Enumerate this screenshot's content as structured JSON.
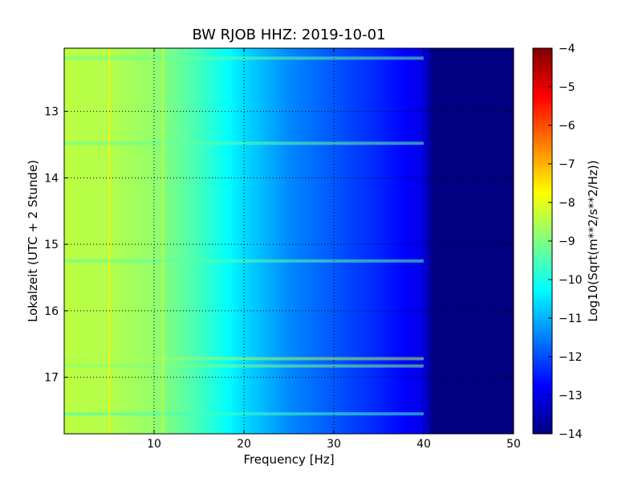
{
  "chart_data": {
    "type": "heatmap",
    "title": "BW RJOB HHZ: 2019-10-01",
    "xlabel": "Frequency [Hz]",
    "ylabel": "Lokalzeit (UTC + 2 Stunde)",
    "xlim": [
      0,
      50
    ],
    "ylim": [
      17.85,
      12.05
    ],
    "y_axis_inverted": true,
    "x_ticks": [
      10,
      20,
      30,
      40,
      50
    ],
    "y_ticks": [
      13,
      14,
      15,
      16,
      17
    ],
    "grid": true,
    "colormap": "jet",
    "colorbar": {
      "label": "Log10(Sqrt(m**2/s**2/Hz))",
      "range": [
        -14,
        -4
      ],
      "ticks": [
        -4,
        -5,
        -6,
        -7,
        -8,
        -9,
        -10,
        -11,
        -12,
        -13,
        -14
      ]
    },
    "spectral_profile": [
      {
        "freq": 0,
        "value": -8.4
      },
      {
        "freq": 5,
        "value": -8.5
      },
      {
        "freq": 10,
        "value": -8.8
      },
      {
        "freq": 15,
        "value": -9.6
      },
      {
        "freq": 20,
        "value": -10.6
      },
      {
        "freq": 25,
        "value": -11.4
      },
      {
        "freq": 30,
        "value": -11.9
      },
      {
        "freq": 35,
        "value": -12.4
      },
      {
        "freq": 40,
        "value": -13.0
      },
      {
        "freq": 41,
        "value": -14.0
      },
      {
        "freq": 50,
        "value": -14.0
      }
    ],
    "features": [
      {
        "type": "narrowband_line",
        "freq": 5.0,
        "value": -7.6
      },
      {
        "type": "narrowband_line",
        "freq": 11.0,
        "value": -8.2
      },
      {
        "type": "time_band",
        "time": 16.72,
        "value": -8.6
      },
      {
        "type": "time_band",
        "time": 16.83,
        "value": -9.0
      },
      {
        "type": "time_band",
        "time": 15.25,
        "value": -9.4
      },
      {
        "type": "time_band",
        "time": 13.48,
        "value": -9.3
      },
      {
        "type": "time_band",
        "time": 12.2,
        "value": -9.3
      },
      {
        "type": "time_band",
        "time": 17.55,
        "value": -9.6
      }
    ]
  }
}
